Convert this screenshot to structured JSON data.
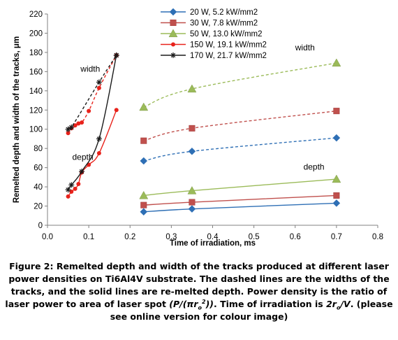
{
  "chart_data": {
    "type": "line",
    "xlabel": "Time of irradiation,  ms",
    "ylabel": "Remelted depth and  width  of the tracks, μm",
    "xlim": [
      0,
      0.8
    ],
    "ylim": [
      0,
      220
    ],
    "xticks": [
      "0.0",
      "0.1",
      "0.2",
      "0.3",
      "0.4",
      "0.5",
      "0.6",
      "0.7",
      "0.8"
    ],
    "yticks": [
      "0",
      "20",
      "40",
      "60",
      "80",
      "100",
      "120",
      "140",
      "160",
      "180",
      "200",
      "220"
    ],
    "grid": false,
    "legend": "top-center",
    "annotations": [
      {
        "text": "width",
        "x": 0.08,
        "y": 160
      },
      {
        "text": "depth",
        "x": 0.06,
        "y": 68
      },
      {
        "text": "width",
        "x": 0.6,
        "y": 182
      },
      {
        "text": "depth",
        "x": 0.62,
        "y": 58
      }
    ],
    "series": [
      {
        "name": "20 W, 5.2 kW/mm2",
        "color": "#2e6fb5",
        "marker": "diamond",
        "legend_line": "solid",
        "width_x": [
          0.233,
          0.35,
          0.7
        ],
        "width_y": [
          67,
          77,
          91
        ],
        "depth_x": [
          0.233,
          0.35,
          0.7
        ],
        "depth_y": [
          14,
          17,
          23
        ]
      },
      {
        "name": "30 W, 7.8 kW/mm2",
        "color": "#c0504d",
        "marker": "square",
        "legend_line": "solid",
        "width_x": [
          0.233,
          0.35,
          0.7
        ],
        "width_y": [
          88,
          101,
          119
        ],
        "depth_x": [
          0.233,
          0.35,
          0.7
        ],
        "depth_y": [
          21,
          24,
          31
        ]
      },
      {
        "name": "50 W, 13.0 kW/mm2",
        "color": "#9bbb59",
        "marker": "triangle",
        "legend_line": "solid",
        "width_x": [
          0.233,
          0.35,
          0.7
        ],
        "width_y": [
          123,
          142,
          169
        ],
        "depth_x": [
          0.233,
          0.35,
          0.7
        ],
        "depth_y": [
          31,
          36,
          48
        ]
      },
      {
        "name": "150 W, 19.1 kW/mm2",
        "color": "#e8221b",
        "marker": "circle",
        "legend_line": "solid",
        "width_x": [
          0.05,
          0.058,
          0.067,
          0.075,
          0.083,
          0.1,
          0.125,
          0.167
        ],
        "width_y": [
          96,
          101,
          104,
          106,
          107,
          119,
          143,
          177
        ],
        "depth_x": [
          0.05,
          0.058,
          0.067,
          0.075,
          0.083,
          0.1,
          0.125,
          0.167
        ],
        "depth_y": [
          30,
          35,
          38,
          43,
          55,
          63,
          75,
          120
        ]
      },
      {
        "name": "170 W, 21.7 kW/mm2",
        "color": "#1a1a1a",
        "marker": "star",
        "legend_line": "solid",
        "width_x": [
          0.05,
          0.058,
          0.125,
          0.167
        ],
        "width_y": [
          100,
          102,
          149,
          177
        ],
        "depth_x": [
          0.05,
          0.058,
          0.083,
          0.125,
          0.167
        ],
        "depth_y": [
          37,
          42,
          56,
          90,
          177
        ]
      }
    ]
  },
  "caption": {
    "lead": "Figure 2: Remelted depth and width of the tracks produced at different laser power densities on Ti6Al4V substrate. The dashed lines are the widths of the tracks, and the solid lines are re-melted depth. Power density is the ratio of laser power to area of laser spot ",
    "formula": "(P/(πr",
    "formula_sub": "o",
    "formula_sup": "2",
    "formula_end": "))",
    "middle": ". Time of irradiation is ",
    "time_formula": "2r",
    "time_sub": "o",
    "time_end": "/V",
    "tail": ". (please see online version for colour image)"
  }
}
